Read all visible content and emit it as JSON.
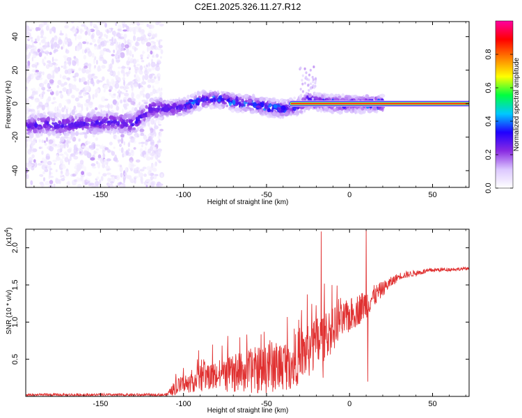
{
  "chart_data": [
    {
      "type": "heatmap",
      "title": "C2E1.2025.326.11.27.R12",
      "xlabel": "Height of straight line (km)",
      "ylabel": "Frequency (Hz)",
      "xlim": [
        -195,
        72
      ],
      "ylim": [
        -50,
        49
      ],
      "xticks": [
        -150,
        -100,
        -50,
        0,
        50
      ],
      "yticks": [
        -40,
        -20,
        0,
        20,
        40
      ],
      "colorbar": {
        "label": "Normalized spectral amplitude",
        "range": [
          0,
          1
        ],
        "ticks": [
          0.0,
          0.2,
          0.4,
          0.6,
          0.8
        ],
        "tick_labels": [
          "0.0",
          "0.2",
          "0.4",
          "0.6",
          "0.8"
        ],
        "colormap": [
          "#ffffff",
          "#dcc8ff",
          "#8a2be2",
          "#2000ff",
          "#00c8ff",
          "#00ff40",
          "#ffff00",
          "#ff8000",
          "#ff0000",
          "#ff00a0"
        ]
      },
      "noise_region": {
        "x_range": [
          -195,
          -113
        ],
        "freq_range": [
          -50,
          49
        ],
        "amplitude": 0.12
      },
      "band_centerline": [
        {
          "x": -195,
          "f": -14
        },
        {
          "x": -185,
          "f": -12
        },
        {
          "x": -175,
          "f": -13
        },
        {
          "x": -160,
          "f": -12
        },
        {
          "x": -145,
          "f": -11
        },
        {
          "x": -130,
          "f": -12
        },
        {
          "x": -120,
          "f": -3
        },
        {
          "x": -110,
          "f": -3
        },
        {
          "x": -100,
          "f": -2
        },
        {
          "x": -90,
          "f": 2
        },
        {
          "x": -80,
          "f": 3
        },
        {
          "x": -70,
          "f": 1
        },
        {
          "x": -60,
          "f": 0
        },
        {
          "x": -50,
          "f": -2
        },
        {
          "x": -40,
          "f": -3
        },
        {
          "x": -30,
          "f": -1
        },
        {
          "x": -25,
          "f": 2
        },
        {
          "x": -20,
          "f": 1
        },
        {
          "x": -10,
          "f": 0
        },
        {
          "x": 0,
          "f": 0
        },
        {
          "x": 10,
          "f": 0
        },
        {
          "x": 20,
          "f": 0
        },
        {
          "x": 72,
          "f": 0
        }
      ],
      "spur": {
        "x": -25,
        "f": 22
      }
    },
    {
      "type": "line",
      "xlabel": "Height of straight line (km)",
      "ylabel": "SNR (10 * v/v)",
      "scale_label": "(x10",
      "scale_exponent": "4",
      "scale_suffix": ")",
      "xlim": [
        -195,
        72
      ],
      "ylim": [
        0,
        2.25
      ],
      "xticks": [
        -150,
        -100,
        -50,
        0,
        50
      ],
      "yticks": [
        0.5,
        1.0,
        1.5,
        2.0
      ],
      "ytick_labels": [
        "0.5",
        "1.0",
        "1.5",
        "2.0"
      ],
      "series": [
        {
          "name": "SNR",
          "color": "#e03030",
          "envelope": [
            {
              "x": -195,
              "mean": 0.02,
              "amp": 0.02
            },
            {
              "x": -110,
              "mean": 0.02,
              "amp": 0.02
            },
            {
              "x": -105,
              "mean": 0.12,
              "amp": 0.1
            },
            {
              "x": -90,
              "mean": 0.25,
              "amp": 0.18
            },
            {
              "x": -70,
              "mean": 0.3,
              "amp": 0.25
            },
            {
              "x": -50,
              "mean": 0.38,
              "amp": 0.35
            },
            {
              "x": -35,
              "mean": 0.45,
              "amp": 0.35
            },
            {
              "x": -20,
              "mean": 0.7,
              "amp": 0.4
            },
            {
              "x": -5,
              "mean": 1.0,
              "amp": 0.25
            },
            {
              "x": 10,
              "mean": 1.25,
              "amp": 0.2
            },
            {
              "x": 20,
              "mean": 1.45,
              "amp": 0.1
            },
            {
              "x": 30,
              "mean": 1.62,
              "amp": 0.05
            },
            {
              "x": 50,
              "mean": 1.7,
              "amp": 0.03
            },
            {
              "x": 72,
              "mean": 1.72,
              "amp": 0.02
            }
          ],
          "spikes": [
            {
              "x": -17,
              "y": 2.22
            },
            {
              "x": -16,
              "y": 0.25
            },
            {
              "x": 10,
              "y": 2.28
            },
            {
              "x": 11,
              "y": 0.2
            }
          ]
        }
      ]
    }
  ]
}
